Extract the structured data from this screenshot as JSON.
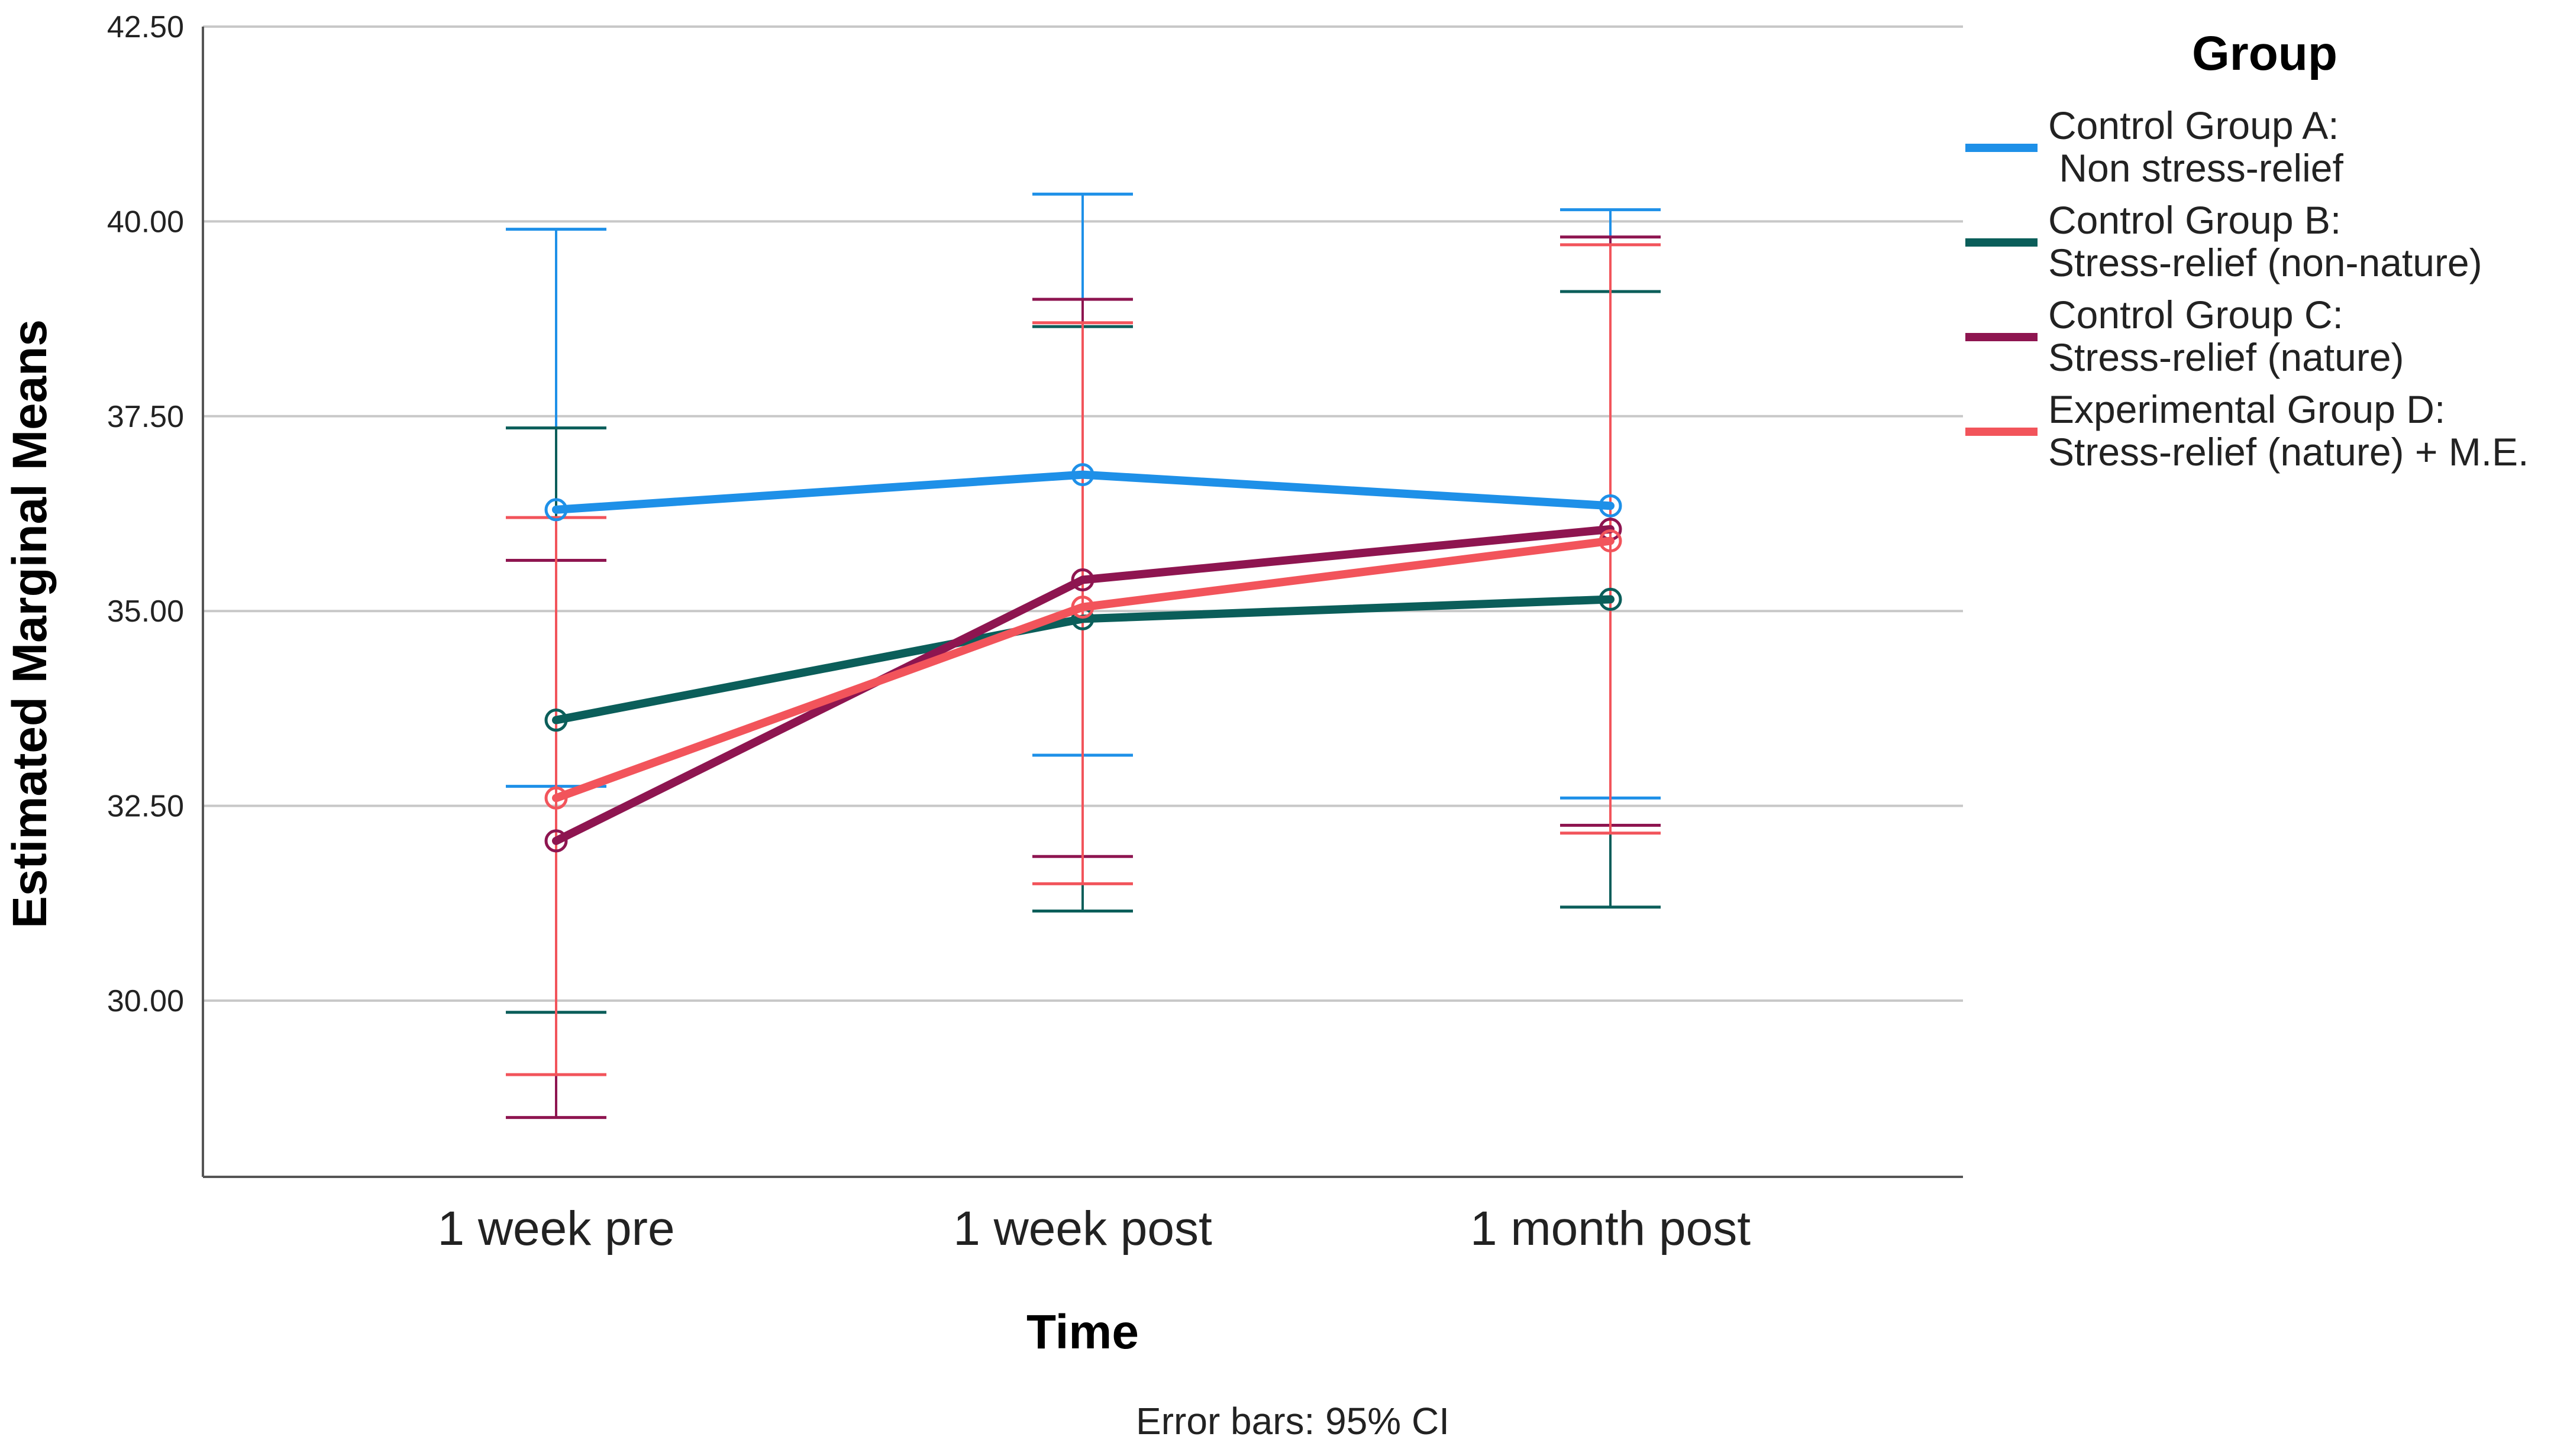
{
  "chart_data": {
    "type": "line",
    "title": "",
    "xlabel": "Time",
    "ylabel": "Estimated Marginal Means",
    "footnote": "Error bars: 95% CI",
    "categories": [
      "1 week pre",
      "1 week post",
      "1 month post"
    ],
    "ylim": [
      27.75,
      42.5
    ],
    "yticks": [
      30.0,
      32.5,
      35.0,
      37.5,
      40.0,
      42.5
    ],
    "ytick_labels": [
      "30.00",
      "32.50",
      "35.00",
      "37.50",
      "40.00",
      "42.50"
    ],
    "grid": true,
    "legend_title": "Group",
    "legend_position": "right",
    "series": [
      {
        "name": "Control Group A: Non stress-relief",
        "legend_lines": [
          "Control Group A:",
          " Non stress-relief"
        ],
        "color": "#1E90E8",
        "values": [
          36.3,
          36.75,
          36.35
        ],
        "ci_lower": [
          32.75,
          33.15,
          32.6
        ],
        "ci_upper": [
          39.9,
          40.35,
          40.15
        ]
      },
      {
        "name": "Control Group B: Stress-relief (non-nature)",
        "legend_lines": [
          "Control Group B:",
          "Stress-relief (non-nature)"
        ],
        "color": "#0B5E5A",
        "values": [
          33.6,
          34.9,
          35.15
        ],
        "ci_lower": [
          29.85,
          31.15,
          31.2
        ],
        "ci_upper": [
          37.35,
          38.65,
          39.1
        ]
      },
      {
        "name": "Control Group C: Stress-relief (nature)",
        "legend_lines": [
          "Control Group C:",
          "Stress-relief (nature)"
        ],
        "color": "#8E1550",
        "values": [
          32.05,
          35.4,
          36.05
        ],
        "ci_lower": [
          28.5,
          31.85,
          32.25
        ],
        "ci_upper": [
          35.65,
          39.0,
          39.8
        ]
      },
      {
        "name": "Experimental Group D: Stress-relief (nature) + M.E.",
        "legend_lines": [
          "Experimental Group D:",
          "Stress-relief (nature) + M.E."
        ],
        "color": "#F2545B",
        "values": [
          32.6,
          35.05,
          35.9
        ],
        "ci_lower": [
          29.05,
          31.5,
          32.15
        ],
        "ci_upper": [
          36.2,
          38.7,
          39.7
        ]
      }
    ]
  }
}
